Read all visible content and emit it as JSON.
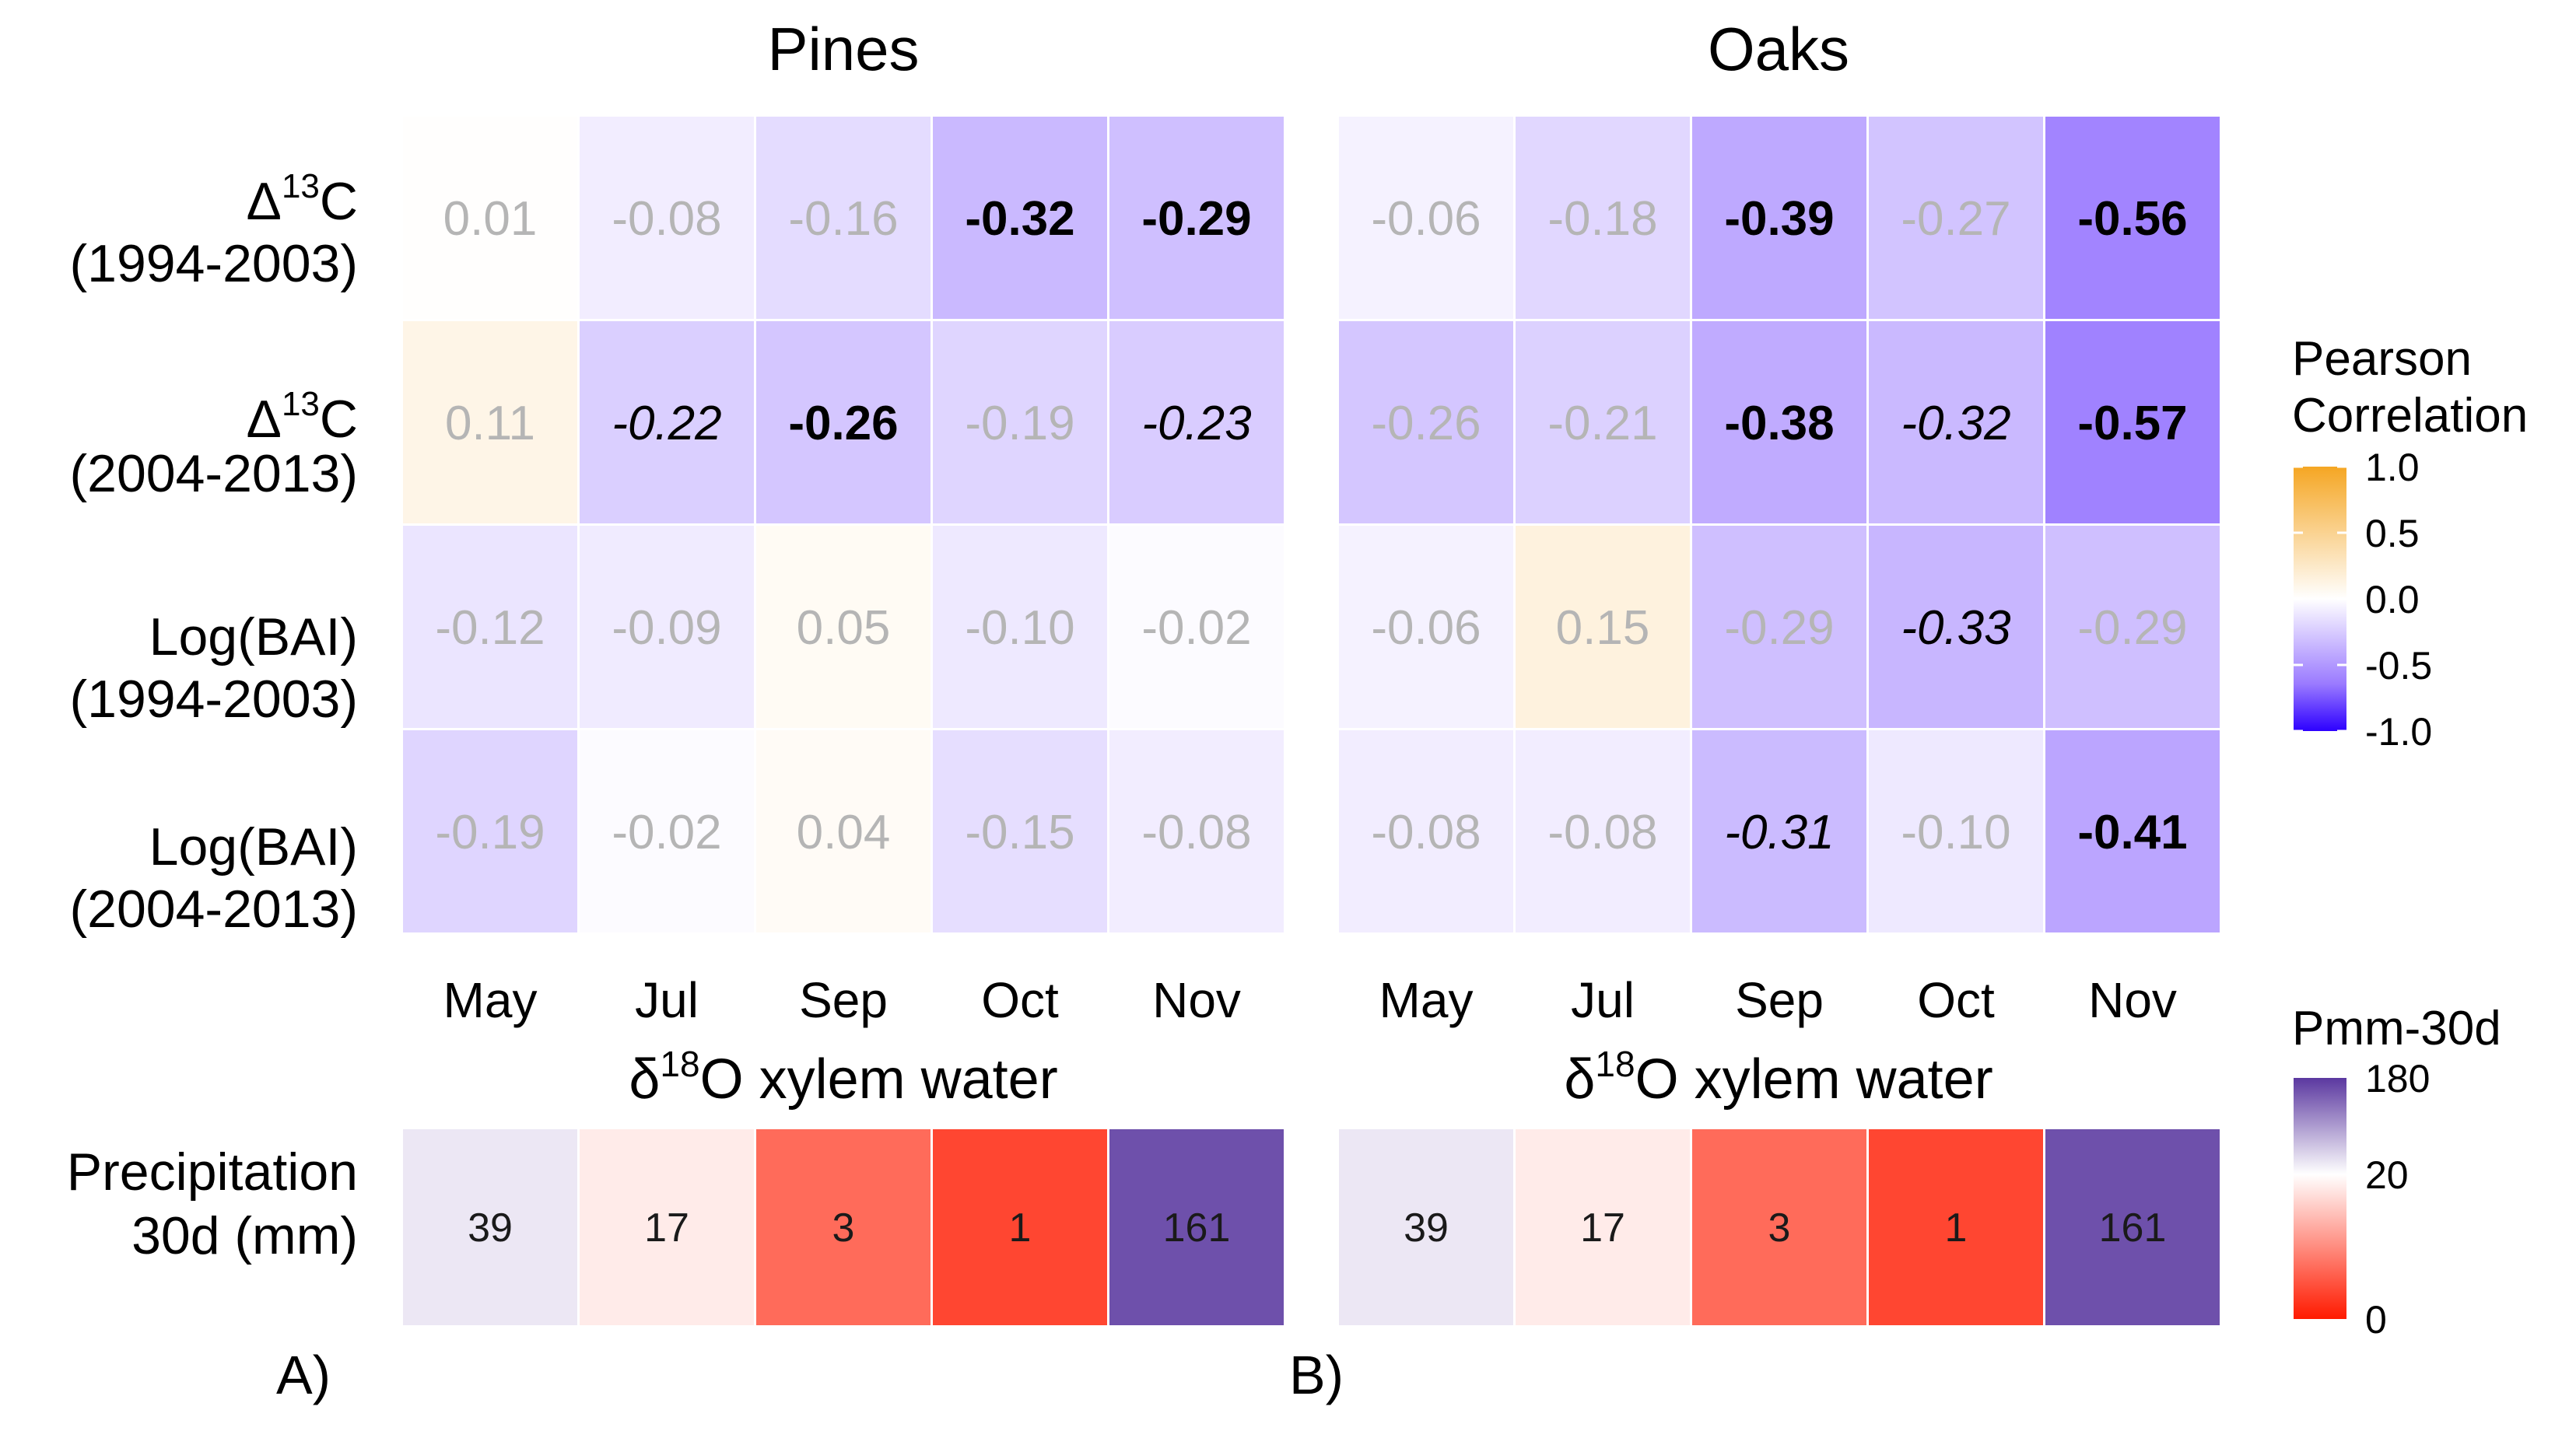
{
  "chart_data": [
    {
      "type": "heatmap",
      "panel": "A",
      "title": "Pines",
      "xlabel": "δ18O xylem water",
      "categories": [
        "May",
        "Jul",
        "Sep",
        "Oct",
        "Nov"
      ],
      "rows": [
        {
          "label_main": "Δ",
          "label_sup": "13",
          "label_tail": "C",
          "label_period": "(1994-2003)",
          "values": [
            0.01,
            -0.08,
            -0.16,
            -0.32,
            -0.29
          ],
          "styles": [
            "gray",
            "gray",
            "gray",
            "bold",
            "bold"
          ]
        },
        {
          "label_main": "Δ",
          "label_sup": "13",
          "label_tail": "C",
          "label_period": "(2004-2013)",
          "values": [
            0.11,
            -0.22,
            -0.26,
            -0.19,
            -0.23
          ],
          "styles": [
            "gray",
            "italic",
            "bold",
            "gray",
            "italic"
          ]
        },
        {
          "label_main": "Log(BAI)",
          "label_sup": "",
          "label_tail": "",
          "label_period": "(1994-2003)",
          "values": [
            -0.12,
            -0.09,
            0.05,
            -0.1,
            -0.02
          ],
          "styles": [
            "gray",
            "gray",
            "gray",
            "gray",
            "gray"
          ]
        },
        {
          "label_main": "Log(BAI)",
          "label_sup": "",
          "label_tail": "",
          "label_period": "(2004-2013)",
          "values": [
            -0.19,
            -0.02,
            0.04,
            -0.15,
            -0.08
          ],
          "styles": [
            "gray",
            "gray",
            "gray",
            "gray",
            "gray"
          ]
        }
      ]
    },
    {
      "type": "heatmap",
      "panel": "B",
      "title": "Oaks",
      "xlabel": "δ18O xylem water",
      "categories": [
        "May",
        "Jul",
        "Sep",
        "Oct",
        "Nov"
      ],
      "rows": [
        {
          "values": [
            -0.06,
            -0.18,
            -0.39,
            -0.27,
            -0.56
          ],
          "styles": [
            "gray",
            "gray",
            "bold",
            "gray",
            "bold"
          ]
        },
        {
          "values": [
            -0.26,
            -0.21,
            -0.38,
            -0.32,
            -0.57
          ],
          "styles": [
            "gray",
            "gray",
            "bold",
            "italic",
            "bold"
          ]
        },
        {
          "values": [
            -0.06,
            0.15,
            -0.29,
            -0.33,
            -0.29
          ],
          "styles": [
            "gray",
            "gray",
            "gray",
            "italic",
            "gray"
          ]
        },
        {
          "values": [
            -0.08,
            -0.08,
            -0.31,
            -0.1,
            -0.41
          ],
          "styles": [
            "gray",
            "gray",
            "italic",
            "gray",
            "bold"
          ]
        }
      ]
    }
  ],
  "precipitation": {
    "label_line1": "Precipitation",
    "label_line2": "30d (mm)",
    "values": [
      39,
      17,
      3,
      1,
      161
    ]
  },
  "legend_correlation": {
    "title_line1": "Pearson",
    "title_line2": "Correlation",
    "ticks": [
      "1.0",
      "0.5",
      "0.0",
      "-0.5",
      "-1.0"
    ],
    "tick_values": [
      1.0,
      0.5,
      0.0,
      -0.5,
      -1.0
    ],
    "range": [
      -1.0,
      1.0
    ]
  },
  "legend_precip": {
    "title": "Pmm-30d",
    "ticks": [
      "180",
      "20",
      "0"
    ],
    "tick_values": [
      180,
      20,
      0
    ]
  },
  "panel_labels": [
    "A)",
    "B)"
  ],
  "colors": {
    "neg_end": "#2d00ff",
    "pos_end": "#f5a623",
    "mid": "#ffffff",
    "precip_low": "#ff1a00",
    "precip_high": "#5b38a0",
    "value_gray": "#b5b5b5"
  }
}
